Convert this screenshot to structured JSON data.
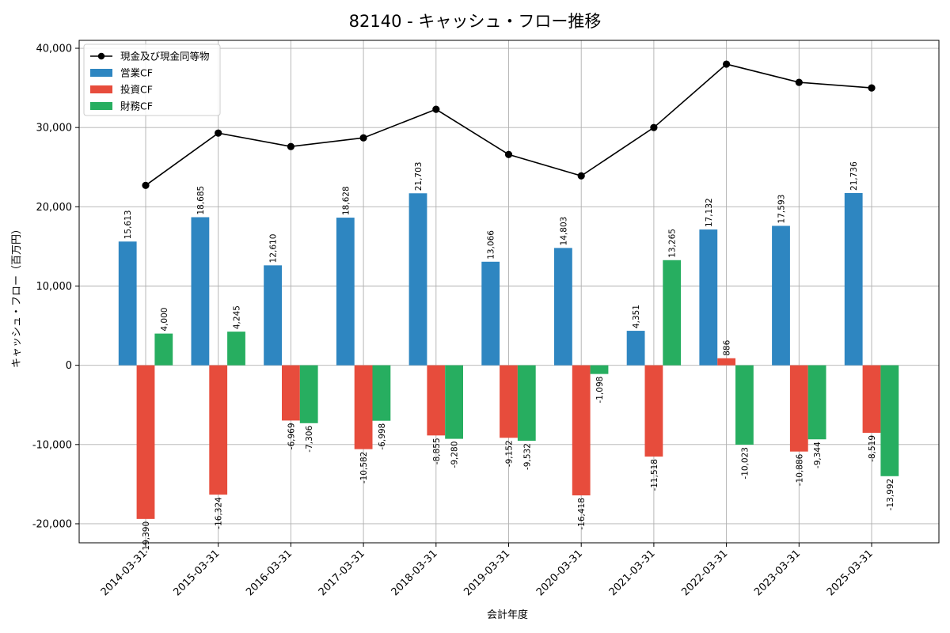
{
  "chart_data": {
    "type": "bar",
    "title": "82140 - キャッシュ・フロー推移",
    "xlabel": "会計年度",
    "ylabel": "キャッシュ・フロー（百万円）",
    "ylim": [
      -22400,
      41000
    ],
    "yticks": [
      -20000,
      -10000,
      0,
      10000,
      20000,
      30000,
      40000
    ],
    "ytick_labels": [
      "-20,000",
      "-10,000",
      "0",
      "10,000",
      "20,000",
      "30,000",
      "40,000"
    ],
    "grid": true,
    "legend_position": "top-left",
    "categories": [
      "2014-03-31",
      "2015-03-31",
      "2016-03-31",
      "2017-03-31",
      "2018-03-31",
      "2019-03-31",
      "2020-03-31",
      "2021-03-31",
      "2022-03-31",
      "2023-03-31",
      "2025-03-31"
    ],
    "series": [
      {
        "name": "営業CF",
        "kind": "bar",
        "color": "#2e86c1",
        "values": [
          15613,
          18685,
          12610,
          18628,
          21703,
          13066,
          14803,
          4351,
          17132,
          17593,
          21736
        ],
        "labels": [
          "15,613",
          "18,685",
          "12,610",
          "18,628",
          "21,703",
          "13,066",
          "14,803",
          "4,351",
          "17,132",
          "17,593",
          "21,736"
        ]
      },
      {
        "name": "投資CF",
        "kind": "bar",
        "color": "#e74c3c",
        "values": [
          -19390,
          -16324,
          -6969,
          -10582,
          -8855,
          -9152,
          -16418,
          -11518,
          886,
          -10886,
          -8519
        ],
        "labels": [
          "-19,390",
          "-16,324",
          "-6,969",
          "-10,582",
          "-8,855",
          "-9,152",
          "-16,418",
          "-11,518",
          "886",
          "-10,886",
          "-8,519"
        ]
      },
      {
        "name": "財務CF",
        "kind": "bar",
        "color": "#27ae60",
        "values": [
          4000,
          4245,
          -7306,
          -6998,
          -9280,
          -9532,
          -1098,
          13265,
          -10023,
          -9344,
          -13992
        ],
        "labels": [
          "4,000",
          "4,245",
          "-7,306",
          "-6,998",
          "-9,280",
          "-9,532",
          "-1,098",
          "13,265",
          "-10,023",
          "-9,344",
          "-13,992"
        ]
      },
      {
        "name": "現金及び現金同等物",
        "kind": "line",
        "color": "#000000",
        "values": [
          22700,
          29300,
          27600,
          28700,
          32300,
          26600,
          23900,
          30000,
          38000,
          35700,
          35000
        ]
      }
    ]
  }
}
